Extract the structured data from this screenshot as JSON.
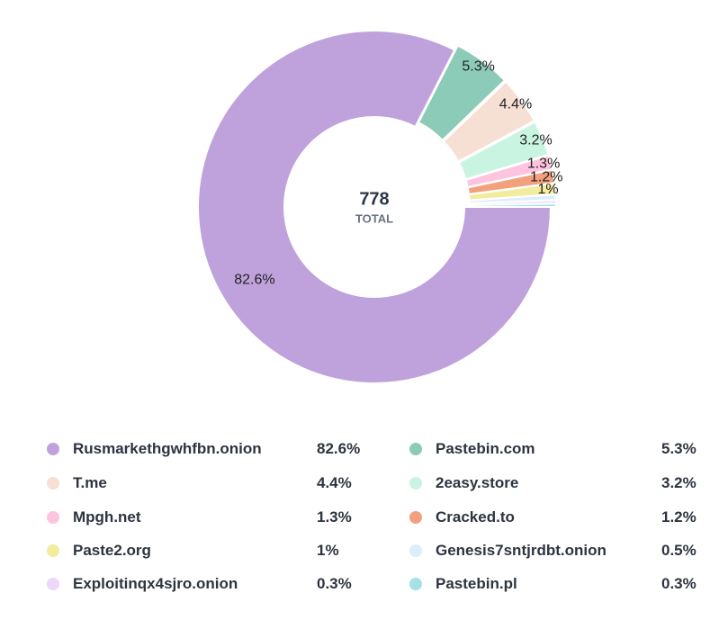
{
  "chart_data": {
    "type": "pie",
    "center_total": {
      "value": "778",
      "label": "TOTAL"
    },
    "categories": [
      "Rusmarkethgwhfbn.onion",
      "Pastebin.com",
      "T.me",
      "2easy.store",
      "Mpgh.net",
      "Cracked.to",
      "Paste2.org",
      "Genesis7sntjrdbt.onion",
      "Exploitinqx4sjro.onion",
      "Pastebin.pl"
    ],
    "values": [
      82.6,
      5.3,
      4.4,
      3.2,
      1.3,
      1.2,
      1,
      0.5,
      0.3,
      0.3
    ],
    "value_labels": [
      "82.6%",
      "5.3%",
      "4.4%",
      "3.2%",
      "1.3%",
      "1.2%",
      "1%",
      "0.5%",
      "0.3%",
      "0.3%"
    ],
    "colors": [
      "#bfa2dc",
      "#8ccbb7",
      "#f6dfd3",
      "#c9f4e1",
      "#fdc3df",
      "#f3a07c",
      "#f2ec9c",
      "#dbeefa",
      "#ecd6fb",
      "#a5e1e9"
    ],
    "slice_label_visible": [
      true,
      true,
      true,
      true,
      true,
      true,
      true,
      false,
      false,
      false
    ],
    "legend_placement": "bottom"
  }
}
